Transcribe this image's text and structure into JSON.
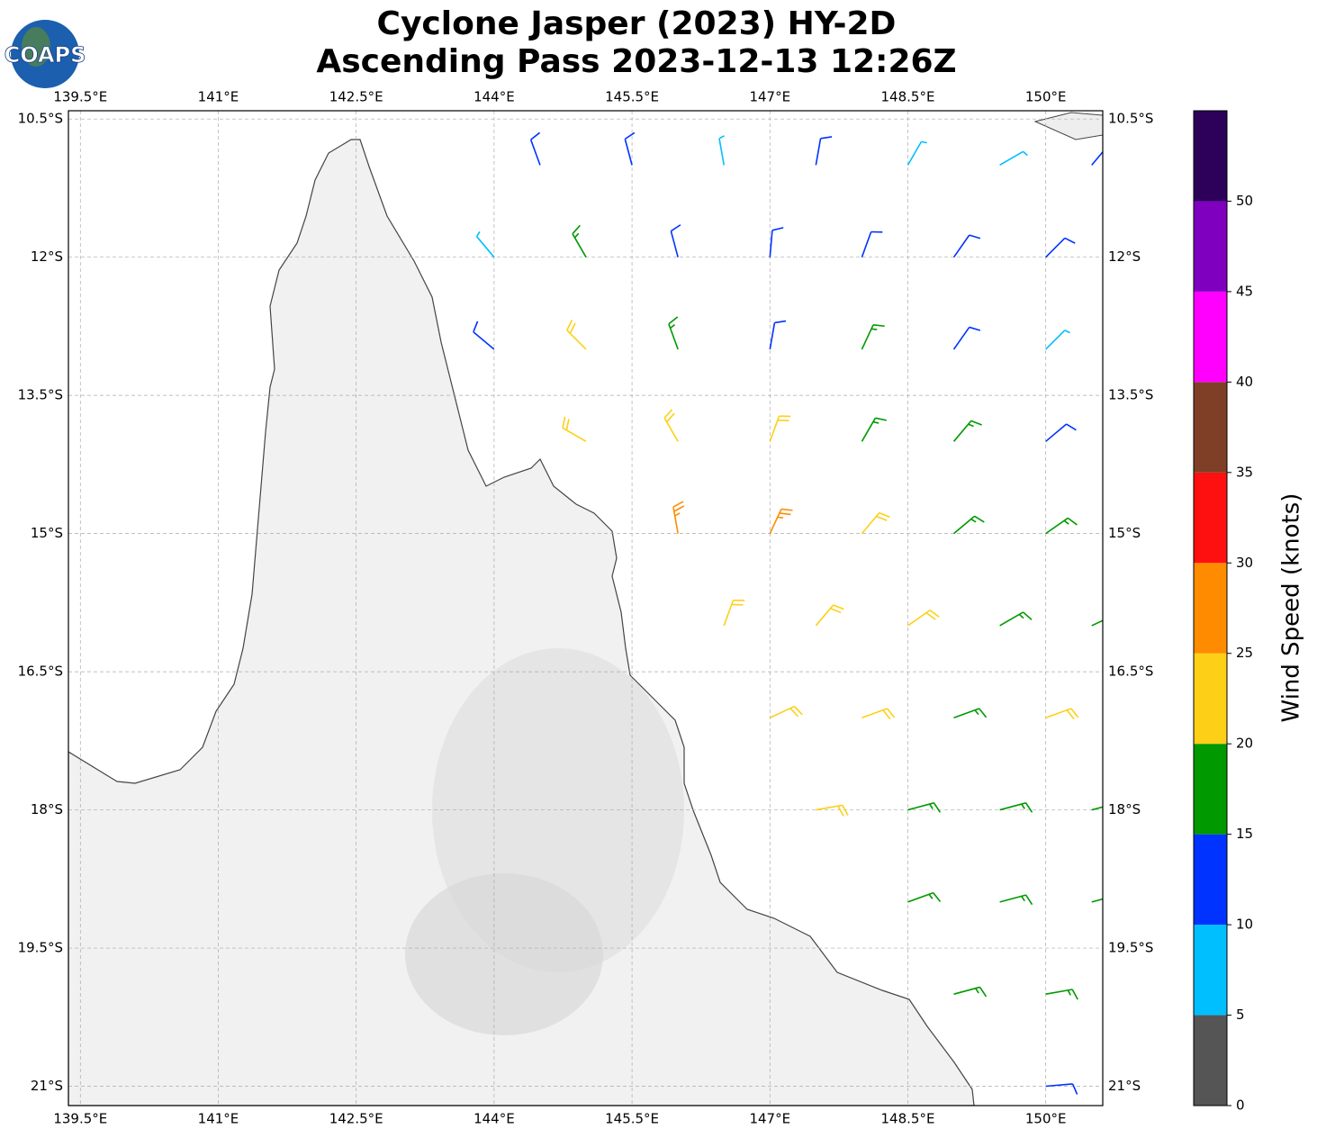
{
  "header": {
    "title_line1": "Cyclone Jasper (2023) HY-2D",
    "title_line2": "Ascending Pass 2023-12-13 12:26Z",
    "logo": "COAPS"
  },
  "map": {
    "xlim": [
      139.37,
      150.62
    ],
    "ylim": [
      -21.21,
      -10.41
    ],
    "xticks": [
      {
        "value": 139.5,
        "label": "139.5°E"
      },
      {
        "value": 141,
        "label": "141°E"
      },
      {
        "value": 142.5,
        "label": "142.5°E"
      },
      {
        "value": 144,
        "label": "144°E"
      },
      {
        "value": 145.5,
        "label": "145.5°E"
      },
      {
        "value": 147,
        "label": "147°E"
      },
      {
        "value": 148.5,
        "label": "148.5°E"
      },
      {
        "value": 150,
        "label": "150°E"
      }
    ],
    "yticks": [
      {
        "value": -10.5,
        "label": "10.5°S"
      },
      {
        "value": -12,
        "label": "12°S"
      },
      {
        "value": -13.5,
        "label": "13.5°S"
      },
      {
        "value": -15,
        "label": "15°S"
      },
      {
        "value": -16.5,
        "label": "16.5°S"
      },
      {
        "value": -18,
        "label": "18°S"
      },
      {
        "value": -19.5,
        "label": "19.5°S"
      },
      {
        "value": -21,
        "label": "21°S"
      }
    ],
    "grid": true,
    "barbs": [
      {
        "lon": 144.5,
        "lat": -11,
        "speed": 12,
        "dir": 340
      },
      {
        "lon": 145.5,
        "lat": -11,
        "speed": 12,
        "dir": 345
      },
      {
        "lon": 146.5,
        "lat": -11,
        "speed": 8,
        "dir": 350
      },
      {
        "lon": 147.5,
        "lat": -11,
        "speed": 12,
        "dir": 10
      },
      {
        "lon": 148.5,
        "lat": -11,
        "speed": 8,
        "dir": 30
      },
      {
        "lon": 149.5,
        "lat": -11,
        "speed": 8,
        "dir": 60
      },
      {
        "lon": 150.5,
        "lat": -11,
        "speed": 12,
        "dir": 40
      },
      {
        "lon": 144,
        "lat": -12,
        "speed": 8,
        "dir": 320
      },
      {
        "lon": 145,
        "lat": -12,
        "speed": 17,
        "dir": 330
      },
      {
        "lon": 146,
        "lat": -12,
        "speed": 13,
        "dir": 345
      },
      {
        "lon": 147,
        "lat": -12,
        "speed": 13,
        "dir": 5
      },
      {
        "lon": 148,
        "lat": -12,
        "speed": 12,
        "dir": 20
      },
      {
        "lon": 149,
        "lat": -12,
        "speed": 12,
        "dir": 35
      },
      {
        "lon": 150,
        "lat": -12,
        "speed": 12,
        "dir": 45
      },
      {
        "lon": 144,
        "lat": -13,
        "speed": 12,
        "dir": 310
      },
      {
        "lon": 145,
        "lat": -13,
        "speed": 22,
        "dir": 315
      },
      {
        "lon": 146,
        "lat": -13,
        "speed": 17,
        "dir": 340
      },
      {
        "lon": 147,
        "lat": -13,
        "speed": 14,
        "dir": 10
      },
      {
        "lon": 148,
        "lat": -13,
        "speed": 17,
        "dir": 25
      },
      {
        "lon": 149,
        "lat": -13,
        "speed": 12,
        "dir": 35
      },
      {
        "lon": 150,
        "lat": -13,
        "speed": 9,
        "dir": 45
      },
      {
        "lon": 145,
        "lat": -14,
        "speed": 22,
        "dir": 300
      },
      {
        "lon": 146,
        "lat": -14,
        "speed": 23,
        "dir": 330
      },
      {
        "lon": 147,
        "lat": -14,
        "speed": 22,
        "dir": 20
      },
      {
        "lon": 148,
        "lat": -14,
        "speed": 18,
        "dir": 30
      },
      {
        "lon": 149,
        "lat": -14,
        "speed": 17,
        "dir": 40
      },
      {
        "lon": 150,
        "lat": -14,
        "speed": 12,
        "dir": 50
      },
      {
        "lon": 146,
        "lat": -15,
        "speed": 27,
        "dir": 350
      },
      {
        "lon": 147,
        "lat": -15,
        "speed": 26,
        "dir": 25
      },
      {
        "lon": 148,
        "lat": -15,
        "speed": 22,
        "dir": 40
      },
      {
        "lon": 149,
        "lat": -15,
        "speed": 18,
        "dir": 50
      },
      {
        "lon": 150,
        "lat": -15,
        "speed": 17,
        "dir": 55
      },
      {
        "lon": 146.5,
        "lat": -16,
        "speed": 24,
        "dir": 20
      },
      {
        "lon": 147.5,
        "lat": -16,
        "speed": 22,
        "dir": 40
      },
      {
        "lon": 148.5,
        "lat": -16,
        "speed": 21,
        "dir": 55
      },
      {
        "lon": 149.5,
        "lat": -16,
        "speed": 19,
        "dir": 60
      },
      {
        "lon": 150.5,
        "lat": -16,
        "speed": 18,
        "dir": 65
      },
      {
        "lon": 147,
        "lat": -17,
        "speed": 22,
        "dir": 65
      },
      {
        "lon": 148,
        "lat": -17,
        "speed": 21,
        "dir": 70
      },
      {
        "lon": 149,
        "lat": -17,
        "speed": 19,
        "dir": 70
      },
      {
        "lon": 150,
        "lat": -17,
        "speed": 21,
        "dir": 70
      },
      {
        "lon": 147.5,
        "lat": -18,
        "speed": 22,
        "dir": 80
      },
      {
        "lon": 148.5,
        "lat": -18,
        "speed": 18,
        "dir": 75
      },
      {
        "lon": 149.5,
        "lat": -18,
        "speed": 19,
        "dir": 75
      },
      {
        "lon": 150.5,
        "lat": -18,
        "speed": 17,
        "dir": 75
      },
      {
        "lon": 148.5,
        "lat": -19,
        "speed": 17,
        "dir": 70
      },
      {
        "lon": 149.5,
        "lat": -19,
        "speed": 18,
        "dir": 75
      },
      {
        "lon": 150.5,
        "lat": -19,
        "speed": 17,
        "dir": 75
      },
      {
        "lon": 149,
        "lat": -20,
        "speed": 16,
        "dir": 75
      },
      {
        "lon": 150,
        "lat": -20,
        "speed": 16,
        "dir": 80
      },
      {
        "lon": 150,
        "lat": -21,
        "speed": 12,
        "dir": 85
      }
    ]
  },
  "colorbar": {
    "label": "Wind Speed (knots)",
    "bounds": [
      0,
      5,
      10,
      15,
      20,
      25,
      30,
      35,
      40,
      45,
      50,
      55
    ],
    "colors": [
      "#555555",
      "#00bfff",
      "#0033ff",
      "#009900",
      "#fdd017",
      "#ff8c00",
      "#ff1010",
      "#7f3f26",
      "#ff00ff",
      "#8000c0",
      "#2d0059"
    ],
    "ticks": [
      0,
      5,
      10,
      15,
      20,
      25,
      30,
      35,
      40,
      45,
      50
    ]
  }
}
